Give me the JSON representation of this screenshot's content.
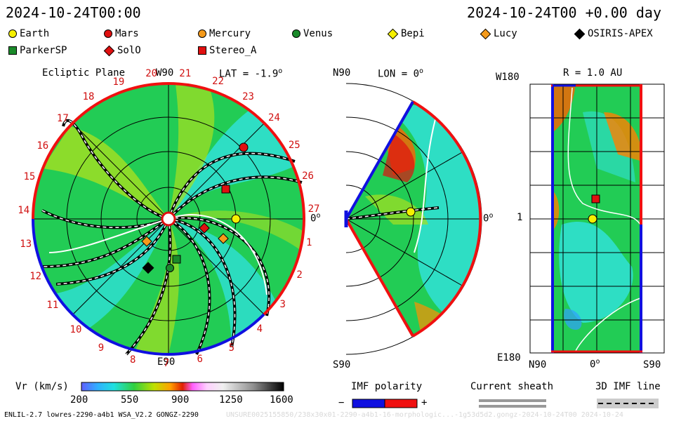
{
  "header": {
    "left_timestamp": "2024-10-24T00:00",
    "right_timestamp": "2024-10-24T00 +0.00 day"
  },
  "legend": [
    {
      "name": "Earth",
      "shape": "circle",
      "color": "#f5f000"
    },
    {
      "name": "Mars",
      "shape": "circle",
      "color": "#e01010"
    },
    {
      "name": "Mercury",
      "shape": "circle",
      "color": "#f59a1a"
    },
    {
      "name": "Venus",
      "shape": "circle",
      "color": "#1a8a2a"
    },
    {
      "name": "Bepi",
      "shape": "diamond",
      "color": "#f5f000"
    },
    {
      "name": "Lucy",
      "shape": "diamond",
      "color": "#f59a1a"
    },
    {
      "name": "OSIRIS-APEX",
      "shape": "diamond",
      "color": "#000000"
    },
    {
      "name": "ParkerSP",
      "shape": "square",
      "color": "#1a8a2a"
    },
    {
      "name": "SolO",
      "shape": "diamond",
      "color": "#e01010"
    },
    {
      "name": "Stereo_A",
      "shape": "square",
      "color": "#e01010"
    }
  ],
  "ecliptic": {
    "title": "Ecliptic Plane",
    "top_label": "W90",
    "bottom_label": "E90",
    "lat_label": "LAT = -1.9",
    "zero_label": "0",
    "carrington_ticks": [
      "20",
      "21",
      "22",
      "23",
      "24",
      "25",
      "26",
      "27",
      "1",
      "2",
      "3",
      "4",
      "5",
      "6",
      "7",
      "8",
      "9",
      "10",
      "11",
      "12",
      "13",
      "14",
      "15",
      "16",
      "17",
      "18",
      "19"
    ]
  },
  "meridional": {
    "top_label": "N90",
    "bottom_label": "S90",
    "lon_label": "LON = 0",
    "zero_label": "0"
  },
  "radial": {
    "title": "R = 1.0 AU",
    "top_left_label": "W180",
    "bottom_left_label": "E180",
    "mid_left_label": "1",
    "bottom_labels": [
      "N90",
      "0",
      "S90"
    ]
  },
  "colorbar": {
    "label": "Vr (km/s)",
    "ticks": [
      "200",
      "550",
      "900",
      "1250",
      "1600"
    ]
  },
  "imf_polarity": {
    "label": "IMF polarity",
    "minus": "−",
    "plus": "+"
  },
  "current_sheath": {
    "label": "Current sheath"
  },
  "imf_line": {
    "label": "3D IMF line"
  },
  "footer": {
    "left": "ENLIL-2.7 lowres-2290-a4b1 WSA_V2.2 GONGZ-2290",
    "right": "UNSURE0025155850/238x30x01-2290-a4b1-16-morphologic...-1g53d5d2.gongz-2024-10-24T00   2024-10-24"
  },
  "colors": {
    "accent_red": "#d01010",
    "polarity_blue": "#1010e0",
    "polarity_red": "#f01010"
  }
}
